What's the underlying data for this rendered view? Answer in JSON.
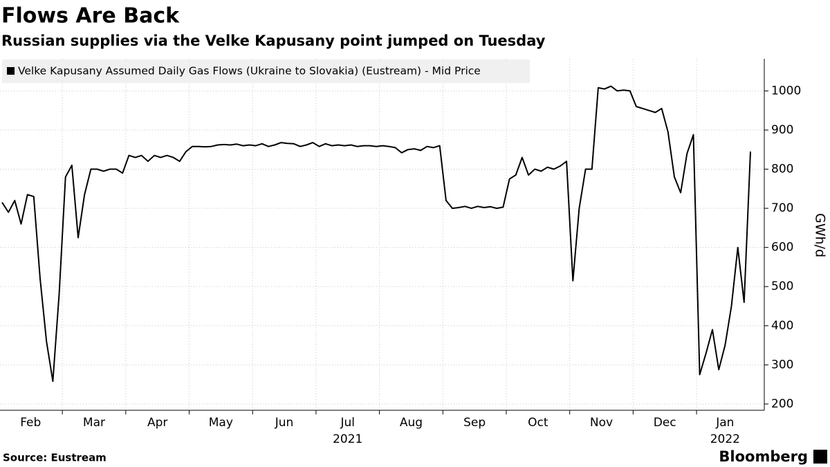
{
  "chart_data": {
    "type": "line",
    "title": "Flows Are Back",
    "subtitle": "Russian supplies via the Velke Kapusany point jumped on Tuesday",
    "source": "Source: Eustream",
    "brand": "Bloomberg",
    "y_axis_label": "GWh/d",
    "x": [
      "2021-02",
      "2021-02",
      "2021-02",
      "2021-02",
      "2021-02",
      "2021-02",
      "2021-02",
      "2021-02",
      "2021-02",
      "2021-02",
      "2021-03",
      "2021-03",
      "2021-03",
      "2021-03",
      "2021-03",
      "2021-03",
      "2021-03",
      "2021-03",
      "2021-03",
      "2021-03",
      "2021-04",
      "2021-04",
      "2021-04",
      "2021-04",
      "2021-04",
      "2021-04",
      "2021-04",
      "2021-04",
      "2021-04",
      "2021-04",
      "2021-05",
      "2021-05",
      "2021-05",
      "2021-05",
      "2021-05",
      "2021-05",
      "2021-05",
      "2021-05",
      "2021-05",
      "2021-05",
      "2021-06",
      "2021-06",
      "2021-06",
      "2021-06",
      "2021-06",
      "2021-06",
      "2021-06",
      "2021-06",
      "2021-06",
      "2021-06",
      "2021-07",
      "2021-07",
      "2021-07",
      "2021-07",
      "2021-07",
      "2021-07",
      "2021-07",
      "2021-07",
      "2021-07",
      "2021-07",
      "2021-08",
      "2021-08",
      "2021-08",
      "2021-08",
      "2021-08",
      "2021-08",
      "2021-08",
      "2021-08",
      "2021-08",
      "2021-08",
      "2021-09",
      "2021-09",
      "2021-09",
      "2021-09",
      "2021-09",
      "2021-09",
      "2021-09",
      "2021-09",
      "2021-09",
      "2021-09",
      "2021-10",
      "2021-10",
      "2021-10",
      "2021-10",
      "2021-10",
      "2021-10",
      "2021-10",
      "2021-10",
      "2021-10",
      "2021-10",
      "2021-11",
      "2021-11",
      "2021-11",
      "2021-11",
      "2021-11",
      "2021-11",
      "2021-11",
      "2021-11",
      "2021-11",
      "2021-11",
      "2021-12",
      "2021-12",
      "2021-12",
      "2021-12",
      "2021-12",
      "2021-12",
      "2021-12",
      "2021-12",
      "2021-12",
      "2021-12",
      "2022-01",
      "2022-01",
      "2022-01",
      "2022-01",
      "2022-01",
      "2022-01",
      "2022-01",
      "2022-01",
      "2022-01"
    ],
    "series": [
      {
        "name": "Velke Kapusany Assumed Daily Gas Flows (Ukraine to Slovakia) (Eustream) - Mid Price",
        "color": "#000000",
        "values": [
          715,
          690,
          720,
          660,
          735,
          730,
          520,
          360,
          258,
          480,
          780,
          810,
          625,
          735,
          800,
          800,
          795,
          800,
          800,
          790,
          835,
          830,
          835,
          820,
          835,
          830,
          835,
          830,
          820,
          845,
          858,
          858,
          857,
          858,
          862,
          863,
          862,
          864,
          860,
          862,
          860,
          865,
          858,
          862,
          868,
          866,
          865,
          858,
          862,
          868,
          858,
          865,
          860,
          862,
          860,
          862,
          858,
          860,
          860,
          858,
          860,
          858,
          855,
          842,
          850,
          852,
          848,
          858,
          855,
          860,
          720,
          700,
          702,
          705,
          700,
          705,
          702,
          704,
          700,
          703,
          775,
          785,
          830,
          785,
          800,
          795,
          805,
          800,
          808,
          820,
          515,
          700,
          800,
          800,
          1008,
          1005,
          1012,
          1000,
          1002,
          1000,
          960,
          955,
          950,
          945,
          955,
          895,
          780,
          740,
          840,
          888,
          275,
          330,
          390,
          288,
          350,
          450,
          600,
          460,
          845
        ]
      }
    ],
    "xticks": [
      {
        "value": "2021-02",
        "label": "Feb"
      },
      {
        "value": "2021-03",
        "label": "Mar"
      },
      {
        "value": "2021-04",
        "label": "Apr"
      },
      {
        "value": "2021-05",
        "label": "May"
      },
      {
        "value": "2021-06",
        "label": "Jun"
      },
      {
        "value": "2021-07",
        "label": "Jul"
      },
      {
        "value": "2021-08",
        "label": "Aug"
      },
      {
        "value": "2021-09",
        "label": "Sep"
      },
      {
        "value": "2021-10",
        "label": "Oct"
      },
      {
        "value": "2021-11",
        "label": "Nov"
      },
      {
        "value": "2021-12",
        "label": "Dec"
      },
      {
        "value": "2022-01",
        "label": "Jan"
      }
    ],
    "year_labels": [
      {
        "value": "2021-07",
        "label": "2021"
      },
      {
        "value": "2022-01",
        "label": "2022"
      }
    ],
    "ylim": [
      184,
      1082
    ],
    "yticks": [
      200,
      300,
      400,
      500,
      600,
      700,
      800,
      900,
      1000
    ],
    "grid": true
  }
}
